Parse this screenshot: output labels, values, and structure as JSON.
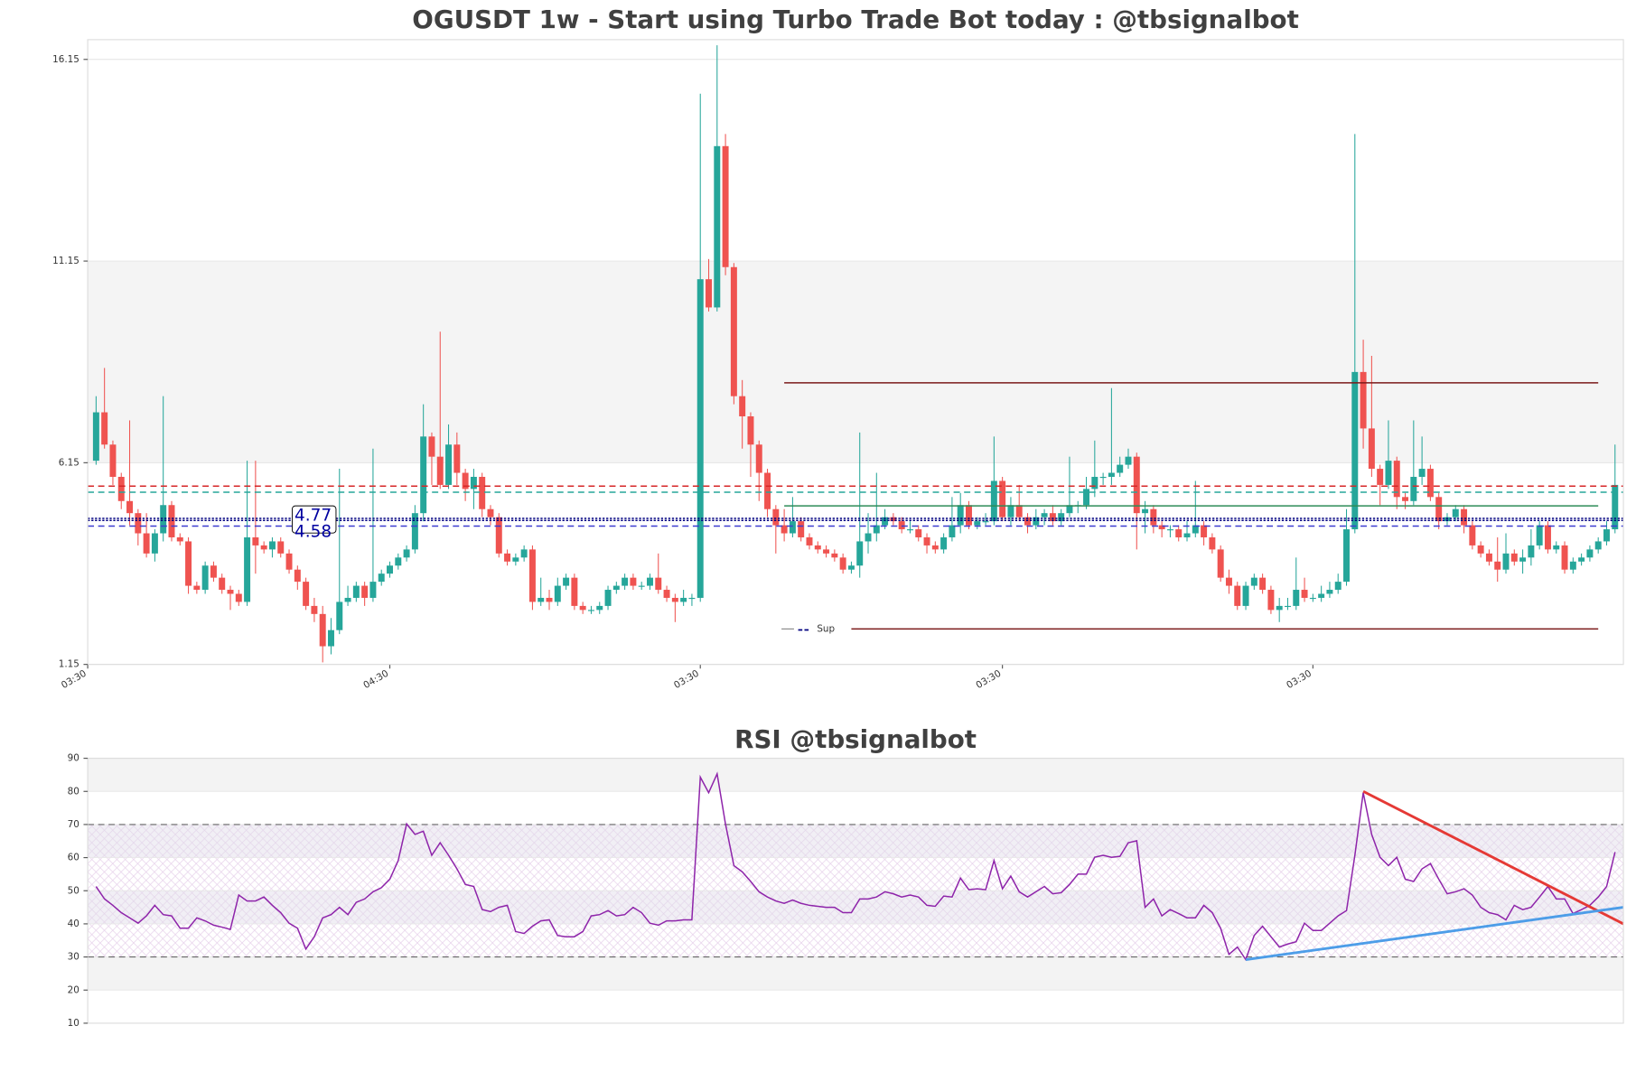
{
  "chart_data": [
    {
      "type": "candlestick",
      "title": "OGUSDT 1w - Start using Turbo Trade Bot today : @tbsignalbot",
      "open": [
        6.2,
        7.4,
        6.6,
        5.8,
        5.2,
        4.9,
        4.4,
        3.9,
        4.4,
        5.1,
        4.3,
        4.2,
        3.1,
        3.0,
        3.6,
        3.3,
        3.0,
        2.9,
        2.7,
        4.3,
        4.1,
        4.0,
        4.2,
        3.9,
        3.5,
        3.2,
        2.6,
        2.4,
        1.6,
        2.0,
        2.7,
        2.8,
        3.1,
        2.8,
        3.2,
        3.4,
        3.6,
        3.8,
        4.0,
        4.9,
        6.8,
        6.3,
        5.6,
        6.6,
        5.9,
        5.5,
        5.8,
        5.0,
        4.8,
        3.9,
        3.7,
        3.8,
        4.0,
        2.7,
        2.8,
        2.7,
        3.1,
        3.3,
        2.6,
        2.5,
        2.5,
        2.6,
        3.0,
        3.1,
        3.3,
        3.1,
        3.1,
        3.3,
        3.0,
        2.8,
        2.7,
        2.8,
        2.8,
        10.7,
        10.0,
        14.0,
        11.0,
        7.8,
        7.3,
        6.6,
        5.9,
        5.0,
        4.6,
        4.4,
        4.7,
        4.3,
        4.1,
        4.0,
        3.9,
        3.8,
        3.5,
        3.6,
        4.2,
        4.4,
        4.6,
        4.8,
        4.7,
        4.5,
        4.5,
        4.3,
        4.1,
        4.0,
        4.3,
        4.6,
        5.1,
        4.6,
        4.7,
        4.7,
        5.7,
        4.8,
        5.1,
        4.8,
        4.6,
        4.8,
        4.9,
        4.7,
        4.9,
        5.1,
        5.1,
        5.5,
        5.8,
        5.8,
        5.9,
        6.1,
        6.3,
        4.9,
        5.0,
        4.6,
        4.5,
        4.5,
        4.3,
        4.4,
        4.6,
        4.3,
        4.0,
        3.3,
        3.1,
        2.6,
        3.1,
        3.3,
        3.0,
        2.5,
        2.6,
        2.6,
        3.0,
        2.8,
        2.8,
        2.9,
        3.0,
        3.2,
        4.5,
        8.4,
        7.0,
        6.0,
        5.6,
        6.2,
        5.3,
        5.2,
        5.8,
        6.0,
        5.3,
        4.7,
        4.8,
        5.0,
        4.6,
        4.1,
        3.9,
        3.7,
        3.5,
        3.9,
        3.7,
        3.8,
        4.1,
        4.6,
        4.0,
        4.1,
        3.5,
        3.7,
        3.8,
        4.0,
        4.2,
        4.5
      ],
      "high": [
        7.8,
        8.5,
        6.7,
        5.9,
        7.2,
        5.0,
        4.9,
        4.5,
        7.8,
        5.2,
        4.4,
        4.3,
        3.2,
        3.7,
        3.7,
        3.4,
        3.1,
        3.0,
        6.2,
        6.2,
        4.2,
        4.3,
        4.3,
        4.0,
        3.6,
        3.3,
        2.8,
        2.6,
        2.3,
        6.0,
        3.1,
        3.2,
        3.2,
        6.5,
        3.5,
        3.7,
        3.9,
        4.1,
        5.1,
        7.6,
        6.9,
        9.4,
        7.1,
        6.9,
        6.0,
        6.0,
        5.9,
        5.1,
        4.9,
        4.0,
        3.9,
        4.1,
        4.1,
        3.3,
        3.0,
        3.3,
        3.4,
        3.4,
        2.7,
        2.6,
        2.7,
        3.1,
        3.2,
        3.4,
        3.4,
        3.2,
        3.4,
        3.9,
        3.1,
        2.9,
        3.0,
        2.9,
        15.3,
        11.2,
        16.5,
        14.3,
        11.1,
        8.2,
        7.4,
        6.7,
        6.0,
        5.1,
        5.0,
        5.3,
        4.8,
        4.4,
        4.2,
        4.1,
        4.0,
        3.9,
        3.7,
        6.9,
        4.9,
        5.9,
        5.0,
        4.9,
        4.8,
        4.7,
        4.6,
        4.4,
        4.2,
        4.4,
        5.3,
        5.4,
        5.2,
        4.8,
        4.9,
        6.8,
        5.8,
        5.3,
        5.6,
        4.9,
        5.0,
        5.0,
        5.1,
        5.0,
        6.3,
        5.2,
        5.8,
        6.7,
        5.9,
        8.0,
        6.3,
        6.5,
        6.4,
        5.2,
        5.1,
        4.7,
        4.6,
        4.6,
        4.7,
        5.7,
        4.7,
        4.4,
        4.1,
        3.5,
        3.2,
        3.2,
        3.4,
        3.4,
        3.1,
        2.8,
        2.8,
        3.8,
        3.3,
        2.9,
        3.1,
        3.2,
        3.4,
        5.0,
        14.3,
        9.2,
        8.8,
        6.1,
        7.2,
        6.3,
        5.4,
        7.2,
        6.8,
        6.1,
        5.4,
        4.9,
        5.1,
        5.1,
        4.7,
        4.2,
        4.0,
        4.3,
        4.4,
        4.0,
        4.0,
        4.5,
        4.7,
        4.7,
        4.2,
        4.2,
        3.8,
        3.9,
        4.1,
        4.3,
        4.7,
        6.6
      ],
      "low": [
        6.1,
        6.5,
        5.6,
        5.0,
        4.6,
        4.1,
        3.8,
        3.7,
        4.2,
        4.2,
        4.1,
        2.9,
        2.9,
        2.9,
        3.2,
        2.9,
        2.5,
        2.6,
        2.6,
        3.4,
        3.9,
        3.8,
        3.8,
        3.4,
        3.0,
        2.5,
        2.2,
        1.2,
        1.4,
        1.9,
        2.6,
        2.7,
        2.6,
        2.7,
        3.1,
        3.3,
        3.5,
        3.7,
        3.9,
        4.7,
        5.6,
        5.5,
        5.5,
        5.6,
        5.2,
        5.0,
        4.8,
        4.6,
        3.8,
        3.6,
        3.6,
        3.7,
        2.5,
        2.6,
        2.5,
        2.6,
        3.0,
        2.5,
        2.4,
        2.4,
        2.4,
        2.5,
        2.9,
        3.0,
        3.0,
        3.0,
        3.0,
        2.9,
        2.7,
        2.2,
        2.6,
        2.6,
        2.7,
        9.9,
        9.9,
        10.8,
        7.6,
        6.5,
        5.8,
        5.2,
        4.8,
        3.9,
        4.2,
        4.3,
        4.2,
        4.0,
        3.9,
        3.8,
        3.7,
        3.4,
        3.4,
        3.3,
        3.9,
        4.2,
        4.5,
        4.6,
        4.4,
        4.4,
        4.2,
        3.9,
        3.9,
        3.9,
        4.2,
        4.4,
        4.5,
        4.5,
        4.6,
        4.6,
        4.7,
        4.6,
        4.7,
        4.4,
        4.5,
        4.6,
        4.6,
        4.6,
        4.8,
        4.9,
        5.0,
        5.3,
        5.6,
        5.6,
        5.8,
        6.0,
        4.0,
        4.4,
        4.4,
        4.3,
        4.3,
        4.2,
        4.2,
        4.3,
        4.1,
        3.9,
        3.2,
        2.9,
        2.5,
        2.5,
        3.0,
        2.9,
        2.4,
        2.2,
        2.5,
        2.5,
        2.7,
        2.7,
        2.7,
        2.8,
        2.9,
        3.1,
        4.4,
        6.5,
        5.8,
        5.1,
        5.5,
        5.0,
        5.0,
        5.1,
        5.6,
        5.2,
        4.5,
        4.6,
        4.7,
        4.4,
        4.0,
        3.8,
        3.6,
        3.2,
        3.4,
        3.6,
        3.4,
        3.6,
        4.0,
        3.9,
        3.9,
        3.4,
        3.4,
        3.6,
        3.7,
        3.9,
        4.1,
        4.4
      ],
      "close": [
        7.4,
        6.6,
        5.8,
        5.2,
        4.9,
        4.4,
        3.9,
        4.4,
        5.1,
        4.3,
        4.2,
        3.1,
        3.0,
        3.6,
        3.3,
        3.0,
        2.9,
        2.7,
        4.3,
        4.1,
        4.0,
        4.2,
        3.9,
        3.5,
        3.2,
        2.6,
        2.4,
        1.6,
        2.0,
        2.7,
        2.8,
        3.1,
        2.8,
        3.2,
        3.4,
        3.6,
        3.8,
        4.0,
        4.9,
        6.8,
        6.3,
        5.6,
        6.6,
        5.9,
        5.5,
        5.8,
        5.0,
        4.8,
        3.9,
        3.7,
        3.8,
        4.0,
        2.7,
        2.8,
        2.7,
        3.1,
        3.3,
        2.6,
        2.5,
        2.5,
        2.6,
        3.0,
        3.1,
        3.3,
        3.1,
        3.1,
        3.3,
        3.0,
        2.8,
        2.7,
        2.8,
        2.8,
        10.7,
        10.0,
        14.0,
        11.0,
        7.8,
        7.3,
        6.6,
        5.9,
        5.0,
        4.6,
        4.4,
        4.7,
        4.3,
        4.1,
        4.0,
        3.9,
        3.8,
        3.5,
        3.6,
        4.2,
        4.4,
        4.6,
        4.8,
        4.7,
        4.5,
        4.5,
        4.3,
        4.1,
        4.0,
        4.3,
        4.6,
        5.1,
        4.6,
        4.7,
        4.7,
        5.7,
        4.8,
        5.1,
        4.8,
        4.6,
        4.8,
        4.9,
        4.7,
        4.9,
        5.1,
        5.1,
        5.5,
        5.8,
        5.8,
        5.9,
        6.1,
        6.3,
        4.9,
        5.0,
        4.6,
        4.5,
        4.5,
        4.3,
        4.4,
        4.6,
        4.3,
        4.0,
        3.3,
        3.1,
        2.6,
        3.1,
        3.3,
        3.0,
        2.5,
        2.6,
        2.6,
        3.0,
        2.8,
        2.8,
        2.9,
        3.0,
        3.2,
        4.5,
        8.4,
        7.0,
        6.0,
        5.6,
        6.2,
        5.3,
        5.2,
        5.8,
        6.0,
        5.3,
        4.7,
        4.8,
        5.0,
        4.6,
        4.1,
        3.9,
        3.7,
        3.5,
        3.9,
        3.7,
        3.8,
        4.1,
        4.6,
        4.0,
        4.1,
        3.5,
        3.7,
        3.8,
        4.0,
        4.2,
        4.5,
        5.6
      ],
      "up_color": "#26a69a",
      "down_color": "#ef5350",
      "xlim": [
        -1,
        182
      ],
      "xticks": [
        {
          "value": -1,
          "label": "03:30"
        },
        {
          "value": 35,
          "label": "04:30"
        },
        {
          "value": 72,
          "label": "03:30"
        },
        {
          "value": 108,
          "label": "03:30"
        },
        {
          "value": 145,
          "label": "03:30"
        }
      ],
      "ylim": [
        1.15,
        16.64
      ],
      "yticks": [
        1.15,
        6.15,
        11.15,
        16.15
      ],
      "grid": true,
      "shaded_range": [
        6.15,
        11.15
      ],
      "levels": [
        {
          "value": 5.57,
          "color": "#d62728",
          "style": "dashed"
        },
        {
          "value": 5.42,
          "color": "#26a69a",
          "style": "dashed"
        },
        {
          "value": 4.77,
          "color": "#000080",
          "style": "dotted",
          "labeled": true
        },
        {
          "value": 4.72,
          "color": "#000080",
          "style": "dotted"
        },
        {
          "value": 4.58,
          "color": "#3b3bd0",
          "style": "dashed",
          "labeled": true
        },
        {
          "value": 5.08,
          "color": "#2e8b57",
          "style": "solid",
          "from": 82,
          "to": 179
        },
        {
          "value": 8.13,
          "color": "#7b1a1a",
          "style": "solid",
          "from": 82,
          "to": 179
        },
        {
          "value": 2.03,
          "color": "#7b1a1a",
          "style": "solid",
          "from": 90,
          "to": 179
        }
      ],
      "legend_label": "Sup"
    },
    {
      "type": "line",
      "title": "RSI @tbsignalbot",
      "color": "#8e24aa",
      "values": [
        51.3,
        47.5,
        45.6,
        43.4,
        41.8,
        40.2,
        42.4,
        45.6,
        42.8,
        42.4,
        38.7,
        38.7,
        41.8,
        40.9,
        39.6,
        39.0,
        38.3,
        48.7,
        46.9,
        46.9,
        48.1,
        45.6,
        43.4,
        40.2,
        38.7,
        32.4,
        36.1,
        41.8,
        42.8,
        45.0,
        42.8,
        46.5,
        47.5,
        49.7,
        50.9,
        53.5,
        59.1,
        70.2,
        67.0,
        68.0,
        60.7,
        64.5,
        60.7,
        56.6,
        51.9,
        51.3,
        44.3,
        43.7,
        45.0,
        45.6,
        37.7,
        37.1,
        39.3,
        40.9,
        41.2,
        36.5,
        36.1,
        36.1,
        37.7,
        42.4,
        42.8,
        44.0,
        42.4,
        42.8,
        45.0,
        43.4,
        40.2,
        39.6,
        40.9,
        40.9,
        41.2,
        41.2,
        84.3,
        79.6,
        85.3,
        70.2,
        57.6,
        55.7,
        52.8,
        49.7,
        48.1,
        46.9,
        46.2,
        47.2,
        46.2,
        45.6,
        45.3,
        45.0,
        45.0,
        43.4,
        43.4,
        47.5,
        47.5,
        48.1,
        49.7,
        49.1,
        48.1,
        48.7,
        48.1,
        45.6,
        45.3,
        48.4,
        48.1,
        53.8,
        50.3,
        50.6,
        50.3,
        59.1,
        50.6,
        54.4,
        49.7,
        48.1,
        49.7,
        51.3,
        49.1,
        49.4,
        51.9,
        55.0,
        55.0,
        60.1,
        60.7,
        60.1,
        60.4,
        64.5,
        65.1,
        45.0,
        47.5,
        42.4,
        44.3,
        43.1,
        41.8,
        41.8,
        45.6,
        43.4,
        38.7,
        30.8,
        33.0,
        29.2,
        36.5,
        39.3,
        36.1,
        33.0,
        33.9,
        34.6,
        40.2,
        38.0,
        38.0,
        40.2,
        42.4,
        44.0,
        60.7,
        79.6,
        67.0,
        60.1,
        57.6,
        60.1,
        53.5,
        52.8,
        56.6,
        58.2,
        53.5,
        49.1,
        49.7,
        50.6,
        48.7,
        45.0,
        43.4,
        42.8,
        41.2,
        45.6,
        44.3,
        45.0,
        48.1,
        51.3,
        47.5,
        47.5,
        43.1,
        44.3,
        45.6,
        48.1,
        51.3,
        61.7
      ],
      "xlim": [
        -1,
        182
      ],
      "ylim": [
        10,
        90
      ],
      "yticks": [
        10,
        20,
        30,
        40,
        50,
        60,
        70,
        80,
        90
      ],
      "grid": true,
      "reference_lines": [
        30,
        70
      ],
      "outer_bands": [
        [
          80,
          90
        ],
        [
          20,
          30
        ]
      ],
      "hatched_range": [
        30,
        70
      ],
      "inner_bands": [
        [
          60,
          70
        ],
        [
          40,
          50
        ]
      ],
      "trendlines": [
        {
          "color": "#e53935",
          "x": [
            151,
            182
          ],
          "y": [
            80,
            40
          ]
        },
        {
          "color": "#4d9de8",
          "x": [
            137,
            182
          ],
          "y": [
            29.2,
            45
          ]
        }
      ]
    }
  ]
}
